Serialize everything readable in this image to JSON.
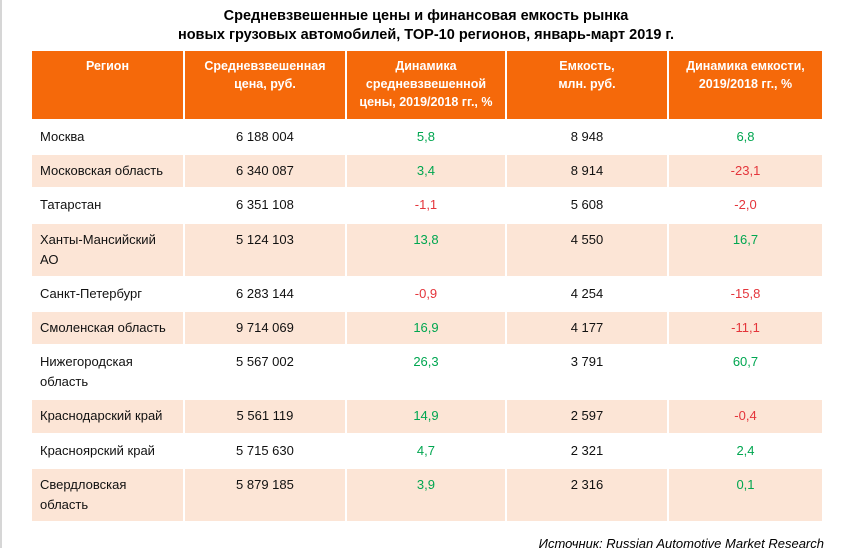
{
  "title": "Средневзвешенные цены и финансовая емкость рынка\nновых грузовых автомобилей, TOP-10 регионов, январь-март 2019 г.",
  "source_label": "Источник: Russian Automotive Market Research",
  "colors": {
    "header_bg": "#F5690A",
    "row_alt_bg": "#FCE5D6",
    "positive": "#00A650",
    "negative": "#E4353B"
  },
  "table": {
    "columns": [
      {
        "label": "Регион"
      },
      {
        "label": "Средневзвешенная\nцена, руб."
      },
      {
        "label": "Динамика\nсредневзвешенной\nцены, 2019/2018 гг., %"
      },
      {
        "label": "Емкость,\nмлн. руб."
      },
      {
        "label": "Динамика емкости,\n2019/2018 гг., %"
      }
    ],
    "rows": [
      {
        "region": "Москва",
        "price": "6 188 004",
        "price_dynamics": "5,8",
        "capacity": "8 948",
        "capacity_dynamics": "6,8"
      },
      {
        "region": "Московская область",
        "price": "6 340 087",
        "price_dynamics": "3,4",
        "capacity": "8 914",
        "capacity_dynamics": "-23,1"
      },
      {
        "region": "Татарстан",
        "price": "6 351 108",
        "price_dynamics": "-1,1",
        "capacity": "5 608",
        "capacity_dynamics": "-2,0"
      },
      {
        "region": "Ханты-Мансийский\nАО",
        "price": "5 124 103",
        "price_dynamics": "13,8",
        "capacity": "4 550",
        "capacity_dynamics": "16,7"
      },
      {
        "region": "Санкт-Петербург",
        "price": "6 283 144",
        "price_dynamics": "-0,9",
        "capacity": "4 254",
        "capacity_dynamics": "-15,8"
      },
      {
        "region": "Смоленская область",
        "price": "9 714 069",
        "price_dynamics": "16,9",
        "capacity": "4 177",
        "capacity_dynamics": "-11,1"
      },
      {
        "region": "Нижегородская\nобласть",
        "price": "5 567 002",
        "price_dynamics": "26,3",
        "capacity": "3 791",
        "capacity_dynamics": "60,7"
      },
      {
        "region": "Краснодарский край",
        "price": "5 561 119",
        "price_dynamics": "14,9",
        "capacity": "2 597",
        "capacity_dynamics": "-0,4"
      },
      {
        "region": "Красноярский край",
        "price": "5 715 630",
        "price_dynamics": "4,7",
        "capacity": "2 321",
        "capacity_dynamics": "2,4"
      },
      {
        "region": "Свердловская\nобласть",
        "price": "5 879 185",
        "price_dynamics": "3,9",
        "capacity": "2 316",
        "capacity_dynamics": "0,1"
      }
    ]
  },
  "chart_data": {
    "type": "table",
    "title": "Средневзвешенные цены и финансовая емкость рынка новых грузовых автомобилей, TOP-10 регионов, январь-март 2019 г.",
    "columns": [
      "Регион",
      "Средневзвешенная цена, руб.",
      "Динамика средневзвешенной цены, 2019/2018 гг., %",
      "Емкость, млн. руб.",
      "Динамика емкости, 2019/2018 гг., %"
    ],
    "rows": [
      [
        "Москва",
        6188004,
        5.8,
        8948,
        6.8
      ],
      [
        "Московская область",
        6340087,
        3.4,
        8914,
        -23.1
      ],
      [
        "Татарстан",
        6351108,
        -1.1,
        5608,
        -2.0
      ],
      [
        "Ханты-Мансийский АО",
        5124103,
        13.8,
        4550,
        16.7
      ],
      [
        "Санкт-Петербург",
        6283144,
        -0.9,
        4254,
        -15.8
      ],
      [
        "Смоленская область",
        9714069,
        16.9,
        4177,
        -11.1
      ],
      [
        "Нижегородская область",
        5567002,
        26.3,
        3791,
        60.7
      ],
      [
        "Краснодарский край",
        5561119,
        14.9,
        2597,
        -0.4
      ],
      [
        "Красноярский край",
        5715630,
        4.7,
        2321,
        2.4
      ],
      [
        "Свердловская область",
        5879185,
        3.9,
        2316,
        0.1
      ]
    ],
    "value_color_rule": "negative values red, non-negative green (dynamics columns only)",
    "source": "Источник: Russian Automotive Market Research"
  }
}
